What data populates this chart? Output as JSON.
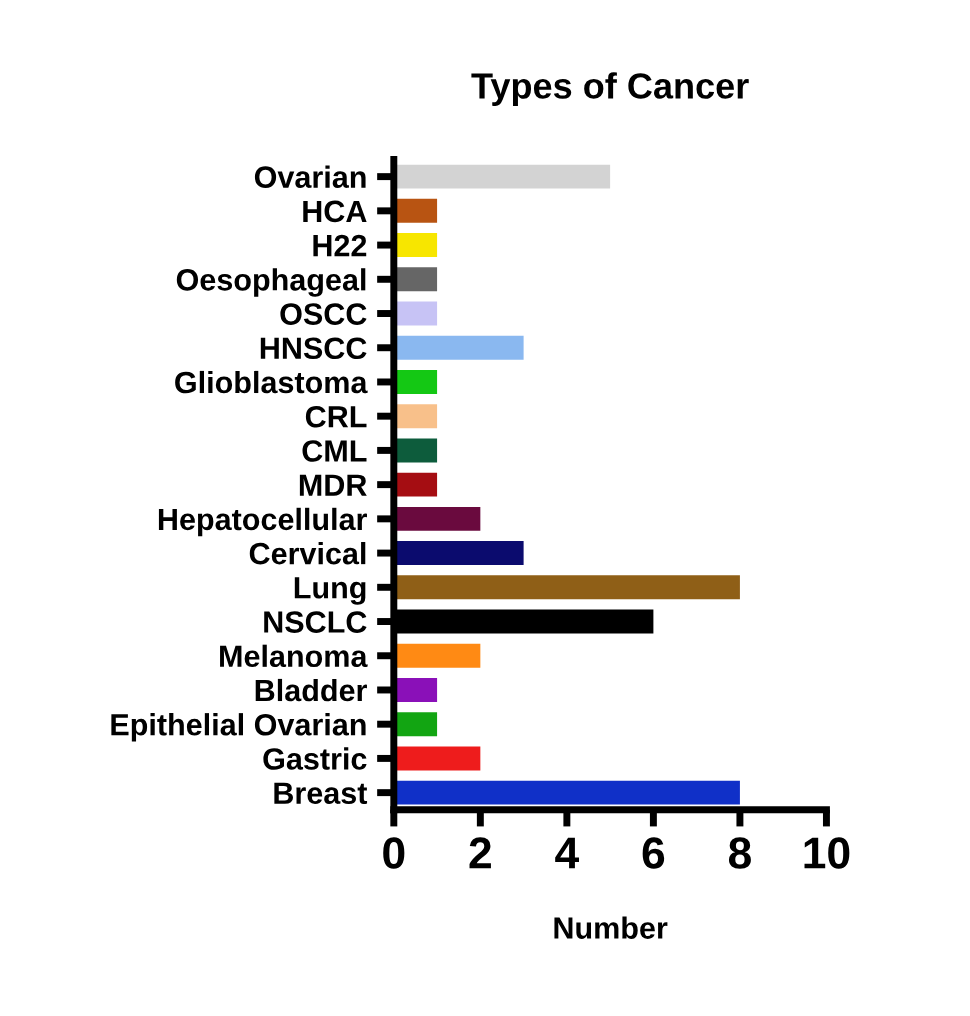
{
  "chart_data": {
    "type": "bar",
    "orientation": "horizontal",
    "title": "Types of Cancer",
    "xlabel": "Number",
    "categories": [
      "Ovarian",
      "HCA",
      "H22",
      "Oesophageal",
      "OSCC",
      "HNSCC",
      "Glioblastoma",
      "CRL",
      "CML",
      "MDR",
      "Hepatocellular",
      "Cervical",
      "Lung",
      "NSCLC",
      "Melanoma",
      "Bladder",
      "Epithelial Ovarian",
      "Gastric",
      "Breast"
    ],
    "values": [
      5,
      1,
      1,
      1,
      1,
      3,
      1,
      1,
      1,
      1,
      2,
      3,
      8,
      6,
      2,
      1,
      1,
      2,
      8
    ],
    "colors": [
      "#d3d3d3",
      "#b85412",
      "#f7e600",
      "#666666",
      "#c7c3f5",
      "#8ab8f0",
      "#14c814",
      "#f8c08a",
      "#0d5c3c",
      "#a50d12",
      "#6a0a3e",
      "#0b0b6e",
      "#8f5f17",
      "#000000",
      "#ff8a14",
      "#8a10b8",
      "#12a512",
      "#ee1c1c",
      "#1030c8"
    ],
    "xlim": [
      0,
      10
    ],
    "xticks": [
      0,
      2,
      4,
      6,
      8,
      10
    ],
    "grid": false,
    "legend": false
  }
}
